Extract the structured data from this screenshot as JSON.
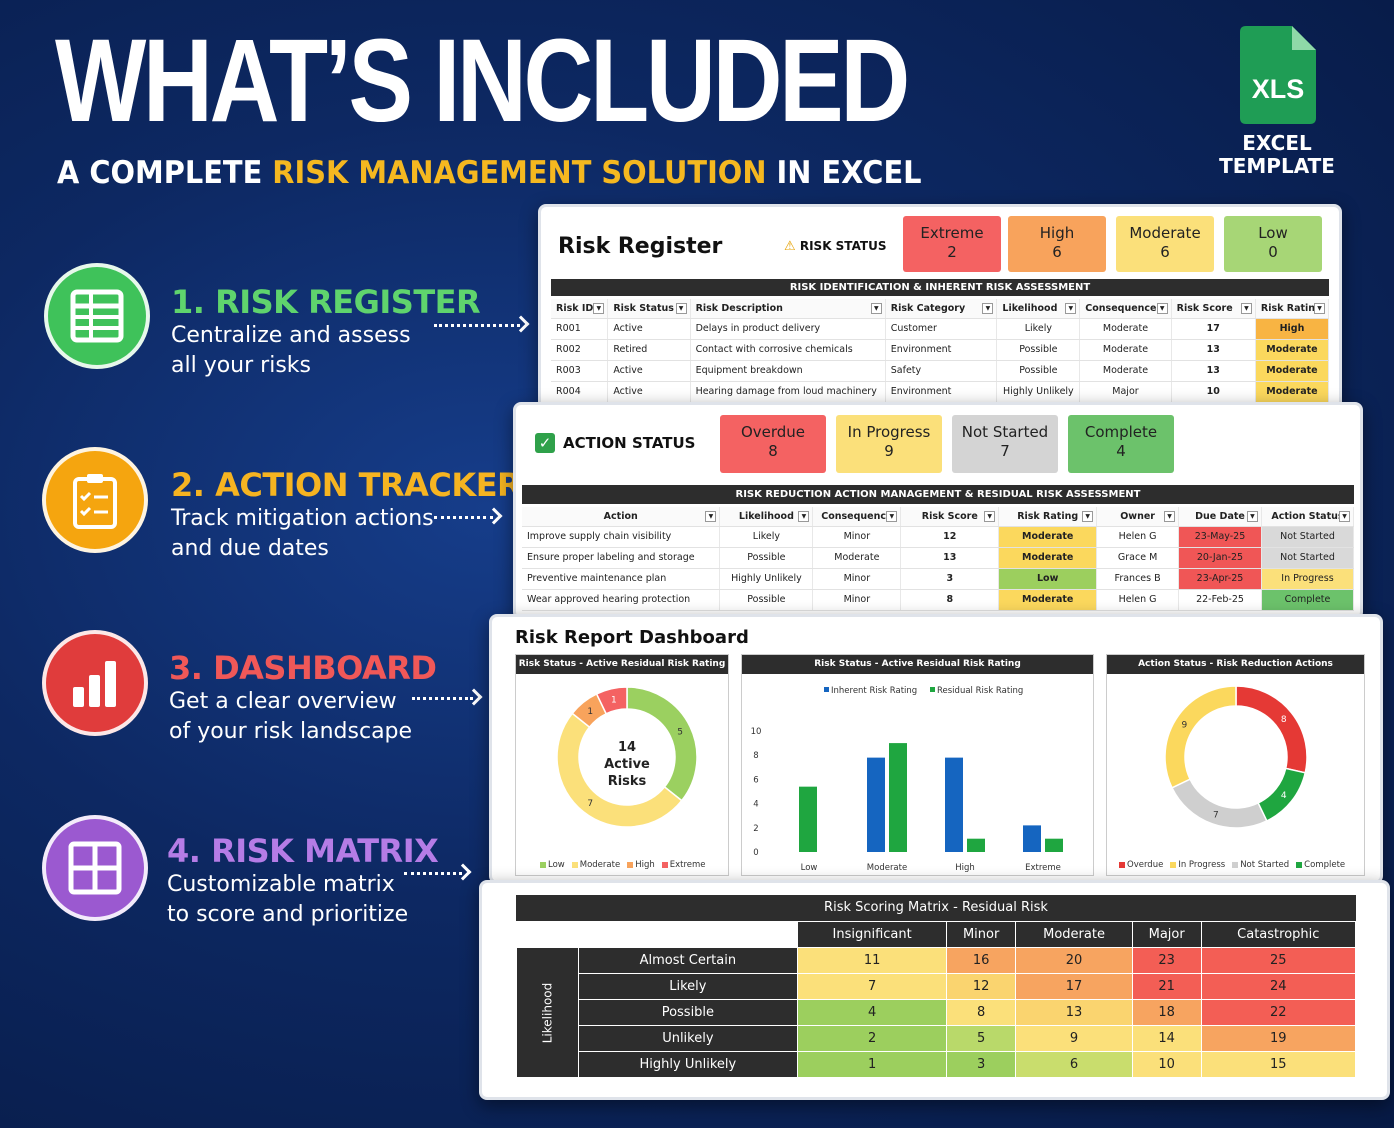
{
  "headline": "WHAT’S INCLUDED",
  "subline": {
    "pre": "A COMPLETE ",
    "highlight": "RISK MANAGEMENT SOLUTION",
    "post": " IN EXCEL"
  },
  "badge": {
    "icon_text": "XLS",
    "caption_line1": "EXCEL",
    "caption_line2": "TEMPLATE",
    "color": "#1f9d55"
  },
  "features": [
    {
      "title": "1. RISK REGISTER",
      "line1": "Centralize and assess",
      "line2": "all your risks",
      "color": "#3fc25a",
      "title_color": "#5fd46d"
    },
    {
      "title": "2. ACTION TRACKER",
      "line1": "Track mitigation actions",
      "line2": "and due dates",
      "color": "#f5a50f",
      "title_color": "#f6b421"
    },
    {
      "title": "3. DASHBOARD",
      "line1": "Get a clear overview",
      "line2": "of your risk landscape",
      "color": "#e03c3c",
      "title_color": "#f05858"
    },
    {
      "title": "4. RISK MATRIX",
      "line1": "Customizable matrix",
      "line2": "to score and prioritize",
      "color": "#9b59d0",
      "title_color": "#b57ce6"
    }
  ],
  "register": {
    "title": "Risk Register",
    "status_label": "RISK STATUS",
    "tiles": [
      {
        "label": "Extreme",
        "value": "2",
        "color": "#f46262"
      },
      {
        "label": "High",
        "value": "6",
        "color": "#f8a35c"
      },
      {
        "label": "Moderate",
        "value": "6",
        "color": "#fbe07a"
      },
      {
        "label": "Low",
        "value": "0",
        "color": "#a7d676"
      }
    ],
    "bar": "RISK IDENTIFICATION & INHERENT RISK ASSESSMENT",
    "headers": [
      "Risk ID",
      "Risk Status",
      "Risk Description",
      "Risk Category",
      "Likelihood",
      "Consequence",
      "Risk Score",
      "Risk Rating"
    ],
    "rows": [
      [
        "R001",
        "Active",
        "Delays in product delivery",
        "Customer",
        "Likely",
        "Moderate",
        "17",
        "High"
      ],
      [
        "R002",
        "Retired",
        "Contact with corrosive chemicals",
        "Environment",
        "Possible",
        "Moderate",
        "13",
        "Moderate"
      ],
      [
        "R003",
        "Active",
        "Equipment breakdown",
        "Safety",
        "Possible",
        "Moderate",
        "13",
        "Moderate"
      ],
      [
        "R004",
        "Active",
        "Hearing damage from loud machinery",
        "Environment",
        "Highly Unlikely",
        "Major",
        "10",
        "Moderate"
      ]
    ]
  },
  "actions": {
    "status_label": "ACTION STATUS",
    "tiles": [
      {
        "label": "Overdue",
        "value": "8",
        "color": "#f46262"
      },
      {
        "label": "In Progress",
        "value": "9",
        "color": "#fbe07a"
      },
      {
        "label": "Not Started",
        "value": "7",
        "color": "#d4d4d4"
      },
      {
        "label": "Complete",
        "value": "4",
        "color": "#6cc26b"
      }
    ],
    "bar": "RISK REDUCTION ACTION MANAGEMENT & RESIDUAL RISK ASSESSMENT",
    "headers": [
      "Action",
      "Likelihood",
      "Consequence",
      "Risk Score",
      "Risk Rating",
      "Owner",
      "Due Date",
      "Action Status"
    ],
    "rows": [
      [
        "Improve supply chain visibility",
        "Likely",
        "Minor",
        "12",
        "Moderate",
        "Helen G",
        "23-May-25",
        "Not Started"
      ],
      [
        "Ensure proper labeling and storage",
        "Possible",
        "Moderate",
        "13",
        "Moderate",
        "Grace M",
        "20-Jan-25",
        "Not Started"
      ],
      [
        "Preventive maintenance plan",
        "Highly Unlikely",
        "Minor",
        "3",
        "Low",
        "Frances B",
        "23-Apr-25",
        "In Progress"
      ],
      [
        "Wear approved hearing protection",
        "Possible",
        "Minor",
        "8",
        "Moderate",
        "Helen G",
        "22-Feb-25",
        "Complete"
      ]
    ]
  },
  "dashboard": {
    "title": "Risk Report Dashboard",
    "panel1_title": "Risk Status - Active Residual Risk Rating",
    "panel2_title": "Risk Status - Active Residual Risk Rating",
    "panel3_title": "Action Status - Risk Reduction Actions",
    "center_value": "14",
    "center_line1": "Active",
    "center_line2": "Risks"
  },
  "chart_data": [
    {
      "type": "pie",
      "title": "Risk Status - Active Residual Risk Rating",
      "categories": [
        "Low",
        "Moderate",
        "High",
        "Extreme"
      ],
      "values": [
        5,
        7,
        1,
        1
      ],
      "colors": [
        "#9bd060",
        "#fbe07a",
        "#f8a35c",
        "#f46262"
      ],
      "center_text": "14 Active Risks",
      "legend": "bottom"
    },
    {
      "type": "bar",
      "title": "Risk Status - Active Residual Risk Rating",
      "categories": [
        "Low",
        "Moderate",
        "High",
        "Extreme"
      ],
      "series": [
        {
          "name": "Inherent Risk Rating",
          "values": [
            5.4,
            7.8,
            7.8,
            2.2
          ],
          "color": "#1565c0"
        },
        {
          "name": "Residual Risk Rating",
          "values": [
            5.4,
            9,
            1.1,
            1.1
          ],
          "color": "#1fa640"
        }
      ],
      "ylim": [
        0,
        10
      ],
      "yticks": [
        0,
        2,
        4,
        6,
        8,
        10
      ],
      "legend": "top"
    },
    {
      "type": "pie",
      "title": "Action Status - Risk Reduction Actions",
      "categories": [
        "Overdue",
        "In Progress",
        "Not Started",
        "Complete"
      ],
      "values": [
        8,
        9,
        7,
        4
      ],
      "colors": [
        "#e53935",
        "#fbd85d",
        "#cfcfcf",
        "#1fa640"
      ],
      "legend": "bottom"
    }
  ],
  "matrix": {
    "title": "Risk Scoring Matrix - Residual Risk",
    "axis_label": "Likelihood",
    "columns": [
      "Insignificant",
      "Minor",
      "Moderate",
      "Major",
      "Catastrophic"
    ],
    "rows": [
      {
        "label": "Almost Certain",
        "values": [
          "11",
          "16",
          "20",
          "23",
          "25"
        ]
      },
      {
        "label": "Likely",
        "values": [
          "7",
          "12",
          "17",
          "21",
          "24"
        ]
      },
      {
        "label": "Possible",
        "values": [
          "4",
          "8",
          "13",
          "18",
          "22"
        ]
      },
      {
        "label": "Unlikely",
        "values": [
          "2",
          "5",
          "9",
          "14",
          "19"
        ]
      },
      {
        "label": "Highly Unlikely",
        "values": [
          "1",
          "3",
          "6",
          "10",
          "15"
        ]
      }
    ]
  }
}
